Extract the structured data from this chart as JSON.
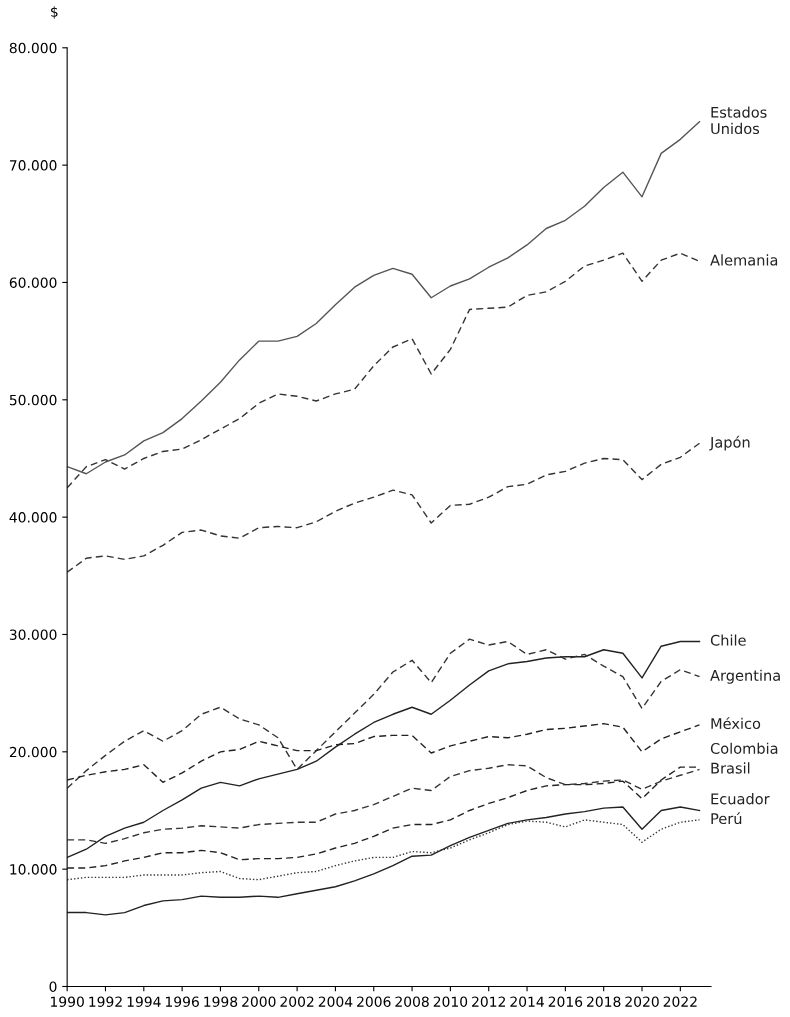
{
  "chart_data": {
    "type": "line",
    "ylabel": "$",
    "x": [
      1990,
      1991,
      1992,
      1993,
      1994,
      1995,
      1996,
      1997,
      1998,
      1999,
      2000,
      2001,
      2002,
      2003,
      2004,
      2005,
      2006,
      2007,
      2008,
      2009,
      2010,
      2011,
      2012,
      2013,
      2014,
      2015,
      2016,
      2017,
      2018,
      2019,
      2020,
      2021,
      2022,
      2023
    ],
    "xlim": [
      1990,
      2023.6
    ],
    "xticks": [
      1990,
      1992,
      1994,
      1996,
      1998,
      2000,
      2002,
      2004,
      2006,
      2008,
      2010,
      2012,
      2014,
      2016,
      2018,
      2020,
      2022
    ],
    "ylim": [
      0,
      80000
    ],
    "yticks": [
      {
        "value": 0,
        "label": "0"
      },
      {
        "value": 10000,
        "label": "10.000"
      },
      {
        "value": 20000,
        "label": "20.000"
      },
      {
        "value": 30000,
        "label": "30.000"
      },
      {
        "value": 40000,
        "label": "40.000"
      },
      {
        "value": 50000,
        "label": "50.000"
      },
      {
        "value": 60000,
        "label": "60.000"
      },
      {
        "value": 70000,
        "label": "70.000"
      },
      {
        "value": 80000,
        "label": "80.000"
      }
    ],
    "grid": false,
    "legend": false,
    "marker": "none",
    "series": [
      {
        "name": "Estados\nUnidos",
        "color": "#555555",
        "line_style": "solid",
        "values": [
          44300,
          43700,
          44700,
          45300,
          46500,
          47200,
          48400,
          49900,
          51500,
          53400,
          55000,
          55000,
          55400,
          56500,
          58100,
          59600,
          60600,
          61200,
          60700,
          58700,
          59700,
          60300,
          61300,
          62100,
          63200,
          64600,
          65300,
          66500,
          68100,
          69400,
          67300,
          71000,
          72200,
          73700
        ]
      },
      {
        "name": "Alemania",
        "color": "#333333",
        "line_style": "dashed",
        "values": [
          42500,
          44300,
          44900,
          44100,
          45000,
          45600,
          45800,
          46600,
          47500,
          48400,
          49700,
          50500,
          50300,
          49900,
          50500,
          50900,
          52900,
          54500,
          55200,
          52200,
          54300,
          57700,
          57800,
          57900,
          58900,
          59200,
          60100,
          61400,
          61900,
          62500,
          60100,
          61900,
          62500,
          61800
        ]
      },
      {
        "name": "Japón",
        "color": "#333333",
        "line_style": "dashed",
        "values": [
          35300,
          36500,
          36700,
          36400,
          36700,
          37600,
          38700,
          38900,
          38400,
          38200,
          39100,
          39200,
          39100,
          39600,
          40500,
          41200,
          41700,
          42300,
          41900,
          39500,
          41000,
          41100,
          41700,
          42600,
          42800,
          43600,
          43900,
          44600,
          45000,
          44900,
          43200,
          44500,
          45100,
          46300
        ]
      },
      {
        "name": "Chile",
        "color": "#222222",
        "line_style": "solid",
        "values": [
          11000,
          11700,
          12800,
          13500,
          14000,
          15000,
          15900,
          16900,
          17400,
          17100,
          17700,
          18100,
          18500,
          19200,
          20400,
          21500,
          22500,
          23200,
          23800,
          23200,
          24400,
          25700,
          26900,
          27500,
          27700,
          28000,
          28100,
          28100,
          28700,
          28400,
          26300,
          29000,
          29400,
          29400
        ]
      },
      {
        "name": "Argentina",
        "color": "#333333",
        "line_style": "dashed",
        "values": [
          16900,
          18400,
          19700,
          20900,
          21800,
          20900,
          21800,
          23200,
          23800,
          22800,
          22300,
          21200,
          18500,
          20100,
          21700,
          23300,
          24900,
          26800,
          27800,
          25900,
          28400,
          29600,
          29100,
          29400,
          28300,
          28700,
          27900,
          28300,
          27300,
          26400,
          23700,
          26000,
          27000,
          26400
        ]
      },
      {
        "name": "México",
        "color": "#222222",
        "line_style": "dashed",
        "values": [
          17600,
          18000,
          18300,
          18500,
          18900,
          17400,
          18200,
          19200,
          20000,
          20200,
          20900,
          20500,
          20100,
          20100,
          20600,
          20700,
          21300,
          21400,
          21400,
          19900,
          20500,
          20900,
          21300,
          21200,
          21500,
          21900,
          22000,
          22200,
          22400,
          22100,
          20000,
          21100,
          21700,
          22300
        ]
      },
      {
        "name": "Colombia",
        "color": "#222222",
        "line_style": "dashed",
        "values": [
          10100,
          10100,
          10300,
          10700,
          11000,
          11400,
          11400,
          11600,
          11400,
          10800,
          10900,
          10900,
          11000,
          11300,
          11800,
          12200,
          12800,
          13500,
          13800,
          13800,
          14200,
          15000,
          15600,
          16100,
          16700,
          17100,
          17200,
          17200,
          17300,
          17500,
          16000,
          17600,
          18700,
          18700
        ]
      },
      {
        "name": "Brasil",
        "color": "#333333",
        "line_style": "dashed",
        "values": [
          12500,
          12500,
          12200,
          12600,
          13100,
          13400,
          13500,
          13700,
          13600,
          13500,
          13800,
          13900,
          14000,
          14000,
          14700,
          15000,
          15500,
          16200,
          16900,
          16700,
          17900,
          18400,
          18600,
          18900,
          18800,
          17800,
          17200,
          17300,
          17500,
          17600,
          16800,
          17500,
          18000,
          18500
        ]
      },
      {
        "name": "Ecuador",
        "color": "#222222",
        "line_style": "solid",
        "values": [
          6300,
          6300,
          6100,
          6300,
          6900,
          7300,
          7400,
          7700,
          7600,
          7600,
          7700,
          7600,
          7900,
          8200,
          8500,
          9000,
          9600,
          10300,
          11100,
          11200,
          12000,
          12700,
          13300,
          13900,
          14200,
          14400,
          14700,
          14900,
          15200,
          15300,
          13400,
          15000,
          15300,
          15000
        ]
      },
      {
        "name": "Perú",
        "color": "#333333",
        "line_style": "dotted",
        "values": [
          9100,
          9300,
          9300,
          9300,
          9500,
          9500,
          9500,
          9700,
          9800,
          9200,
          9100,
          9400,
          9700,
          9800,
          10300,
          10700,
          11000,
          11000,
          11500,
          11400,
          11800,
          12500,
          13100,
          13800,
          14100,
          14000,
          13600,
          14200,
          14000,
          13800,
          12300,
          13400,
          14000,
          14200
        ]
      }
    ]
  }
}
